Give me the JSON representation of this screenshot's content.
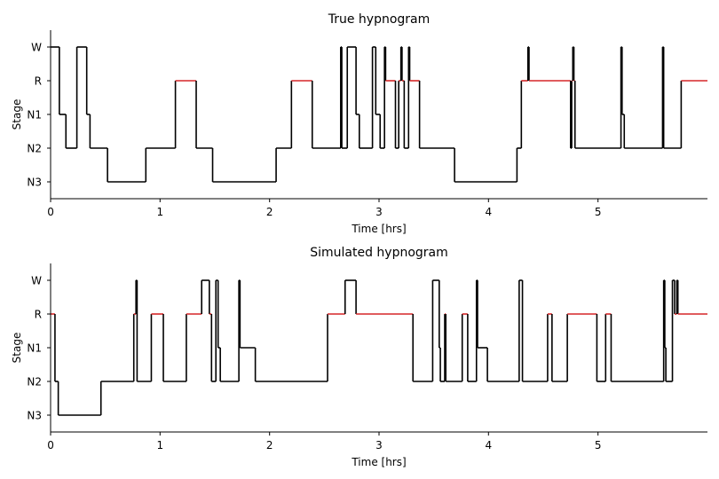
{
  "chart_data": [
    {
      "type": "line",
      "title": "True hypnogram",
      "xlabel": "Time [hrs]",
      "ylabel": "Stage",
      "xlim": [
        0,
        6.0
      ],
      "xticks": [
        "0",
        "1",
        "2",
        "3",
        "4",
        "5"
      ],
      "yticks": [
        "W",
        "R",
        "N1",
        "N2",
        "N3"
      ],
      "legend": "none",
      "grid": false,
      "colors": {
        "line": "#000000",
        "rem": "#d62728"
      },
      "segments": [
        {
          "start": 0.0,
          "end": 0.08,
          "stage": "W"
        },
        {
          "start": 0.08,
          "end": 0.14,
          "stage": "N1"
        },
        {
          "start": 0.14,
          "end": 0.24,
          "stage": "N2"
        },
        {
          "start": 0.24,
          "end": 0.33,
          "stage": "W"
        },
        {
          "start": 0.33,
          "end": 0.36,
          "stage": "N1"
        },
        {
          "start": 0.36,
          "end": 0.52,
          "stage": "N2"
        },
        {
          "start": 0.52,
          "end": 0.87,
          "stage": "N3"
        },
        {
          "start": 0.87,
          "end": 1.14,
          "stage": "N2"
        },
        {
          "start": 1.14,
          "end": 1.33,
          "stage": "R"
        },
        {
          "start": 1.33,
          "end": 1.48,
          "stage": "N2"
        },
        {
          "start": 1.48,
          "end": 2.06,
          "stage": "N3"
        },
        {
          "start": 2.06,
          "end": 2.2,
          "stage": "N2"
        },
        {
          "start": 2.2,
          "end": 2.39,
          "stage": "R"
        },
        {
          "start": 2.39,
          "end": 2.65,
          "stage": "N2"
        },
        {
          "start": 2.65,
          "end": 2.66,
          "stage": "W"
        },
        {
          "start": 2.66,
          "end": 2.71,
          "stage": "N2"
        },
        {
          "start": 2.71,
          "end": 2.79,
          "stage": "W"
        },
        {
          "start": 2.79,
          "end": 2.82,
          "stage": "N1"
        },
        {
          "start": 2.82,
          "end": 2.94,
          "stage": "N2"
        },
        {
          "start": 2.94,
          "end": 2.97,
          "stage": "W"
        },
        {
          "start": 2.97,
          "end": 3.01,
          "stage": "N1"
        },
        {
          "start": 3.01,
          "end": 3.05,
          "stage": "N2"
        },
        {
          "start": 3.05,
          "end": 3.06,
          "stage": "W"
        },
        {
          "start": 3.06,
          "end": 3.15,
          "stage": "R"
        },
        {
          "start": 3.15,
          "end": 3.18,
          "stage": "N2"
        },
        {
          "start": 3.18,
          "end": 3.2,
          "stage": "R"
        },
        {
          "start": 3.2,
          "end": 3.21,
          "stage": "W"
        },
        {
          "start": 3.21,
          "end": 3.23,
          "stage": "R"
        },
        {
          "start": 3.23,
          "end": 3.27,
          "stage": "N2"
        },
        {
          "start": 3.27,
          "end": 3.28,
          "stage": "W"
        },
        {
          "start": 3.28,
          "end": 3.37,
          "stage": "R"
        },
        {
          "start": 3.37,
          "end": 3.69,
          "stage": "N2"
        },
        {
          "start": 3.69,
          "end": 4.26,
          "stage": "N3"
        },
        {
          "start": 4.26,
          "end": 4.3,
          "stage": "N2"
        },
        {
          "start": 4.3,
          "end": 4.36,
          "stage": "R"
        },
        {
          "start": 4.36,
          "end": 4.37,
          "stage": "W"
        },
        {
          "start": 4.37,
          "end": 4.75,
          "stage": "R"
        },
        {
          "start": 4.75,
          "end": 4.76,
          "stage": "N2"
        },
        {
          "start": 4.76,
          "end": 4.77,
          "stage": "R"
        },
        {
          "start": 4.77,
          "end": 4.78,
          "stage": "W"
        },
        {
          "start": 4.78,
          "end": 4.79,
          "stage": "R"
        },
        {
          "start": 4.79,
          "end": 5.21,
          "stage": "N2"
        },
        {
          "start": 5.21,
          "end": 5.22,
          "stage": "W"
        },
        {
          "start": 5.22,
          "end": 5.24,
          "stage": "N1"
        },
        {
          "start": 5.24,
          "end": 5.59,
          "stage": "N2"
        },
        {
          "start": 5.59,
          "end": 5.6,
          "stage": "W"
        },
        {
          "start": 5.6,
          "end": 5.76,
          "stage": "N2"
        },
        {
          "start": 5.76,
          "end": 6.0,
          "stage": "R"
        }
      ]
    },
    {
      "type": "line",
      "title": "Simulated hypnogram",
      "xlabel": "Time [hrs]",
      "ylabel": "Stage",
      "xlim": [
        0,
        6.0
      ],
      "xticks": [
        "0",
        "1",
        "2",
        "3",
        "4",
        "5"
      ],
      "yticks": [
        "W",
        "R",
        "N1",
        "N2",
        "N3"
      ],
      "legend": "none",
      "grid": false,
      "colors": {
        "line": "#000000",
        "rem": "#d62728"
      },
      "segments": [
        {
          "start": 0.0,
          "end": 0.04,
          "stage": "R"
        },
        {
          "start": 0.04,
          "end": 0.07,
          "stage": "N2"
        },
        {
          "start": 0.07,
          "end": 0.46,
          "stage": "N3"
        },
        {
          "start": 0.46,
          "end": 0.76,
          "stage": "N2"
        },
        {
          "start": 0.76,
          "end": 0.78,
          "stage": "R"
        },
        {
          "start": 0.78,
          "end": 0.79,
          "stage": "W"
        },
        {
          "start": 0.79,
          "end": 0.92,
          "stage": "N2"
        },
        {
          "start": 0.92,
          "end": 1.03,
          "stage": "R"
        },
        {
          "start": 1.03,
          "end": 1.24,
          "stage": "N2"
        },
        {
          "start": 1.24,
          "end": 1.38,
          "stage": "R"
        },
        {
          "start": 1.38,
          "end": 1.45,
          "stage": "W"
        },
        {
          "start": 1.45,
          "end": 1.47,
          "stage": "R"
        },
        {
          "start": 1.47,
          "end": 1.51,
          "stage": "N2"
        },
        {
          "start": 1.51,
          "end": 1.53,
          "stage": "W"
        },
        {
          "start": 1.53,
          "end": 1.55,
          "stage": "N1"
        },
        {
          "start": 1.55,
          "end": 1.72,
          "stage": "N2"
        },
        {
          "start": 1.72,
          "end": 1.73,
          "stage": "W"
        },
        {
          "start": 1.73,
          "end": 1.87,
          "stage": "N1"
        },
        {
          "start": 1.87,
          "end": 2.53,
          "stage": "N2"
        },
        {
          "start": 2.53,
          "end": 2.69,
          "stage": "R"
        },
        {
          "start": 2.69,
          "end": 2.79,
          "stage": "W"
        },
        {
          "start": 2.79,
          "end": 3.31,
          "stage": "R"
        },
        {
          "start": 3.31,
          "end": 3.49,
          "stage": "N2"
        },
        {
          "start": 3.49,
          "end": 3.55,
          "stage": "W"
        },
        {
          "start": 3.55,
          "end": 3.56,
          "stage": "N1"
        },
        {
          "start": 3.56,
          "end": 3.6,
          "stage": "N2"
        },
        {
          "start": 3.6,
          "end": 3.61,
          "stage": "R"
        },
        {
          "start": 3.61,
          "end": 3.76,
          "stage": "N2"
        },
        {
          "start": 3.76,
          "end": 3.81,
          "stage": "R"
        },
        {
          "start": 3.81,
          "end": 3.89,
          "stage": "N2"
        },
        {
          "start": 3.89,
          "end": 3.9,
          "stage": "W"
        },
        {
          "start": 3.9,
          "end": 3.99,
          "stage": "N1"
        },
        {
          "start": 3.99,
          "end": 4.28,
          "stage": "N2"
        },
        {
          "start": 4.28,
          "end": 4.31,
          "stage": "W"
        },
        {
          "start": 4.31,
          "end": 4.54,
          "stage": "N2"
        },
        {
          "start": 4.54,
          "end": 4.58,
          "stage": "R"
        },
        {
          "start": 4.58,
          "end": 4.72,
          "stage": "N2"
        },
        {
          "start": 4.72,
          "end": 4.99,
          "stage": "R"
        },
        {
          "start": 4.99,
          "end": 5.07,
          "stage": "N2"
        },
        {
          "start": 5.07,
          "end": 5.12,
          "stage": "R"
        },
        {
          "start": 5.12,
          "end": 5.6,
          "stage": "N2"
        },
        {
          "start": 5.6,
          "end": 5.61,
          "stage": "W"
        },
        {
          "start": 5.61,
          "end": 5.62,
          "stage": "N1"
        },
        {
          "start": 5.62,
          "end": 5.68,
          "stage": "N2"
        },
        {
          "start": 5.68,
          "end": 5.7,
          "stage": "W"
        },
        {
          "start": 5.7,
          "end": 5.72,
          "stage": "R"
        },
        {
          "start": 5.72,
          "end": 5.73,
          "stage": "W"
        },
        {
          "start": 5.73,
          "end": 6.0,
          "stage": "R"
        }
      ]
    }
  ]
}
